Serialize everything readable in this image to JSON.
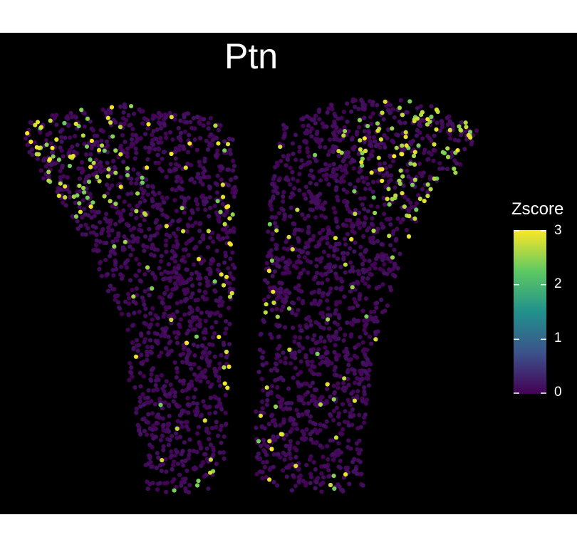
{
  "chart_data": {
    "type": "scatter",
    "title": "Ptn",
    "xlabel": "",
    "ylabel": "",
    "background": "#000000",
    "legend": {
      "title": "Zscore",
      "placement": "right",
      "range": [
        0,
        3
      ],
      "ticks": [
        "0",
        "1",
        "2",
        "3"
      ]
    },
    "colormap": [
      "#440154",
      "#3b528b",
      "#21918c",
      "#5ec962",
      "#fde725"
    ],
    "tissue_shape": "two symmetric wing-shaped lobes separated by a narrow vertical gap",
    "high_expression_regions": "dorsal outer corners of both lobes and along the medial edges",
    "approx_cell_count": 3200,
    "approx_high_fraction": 0.09
  }
}
